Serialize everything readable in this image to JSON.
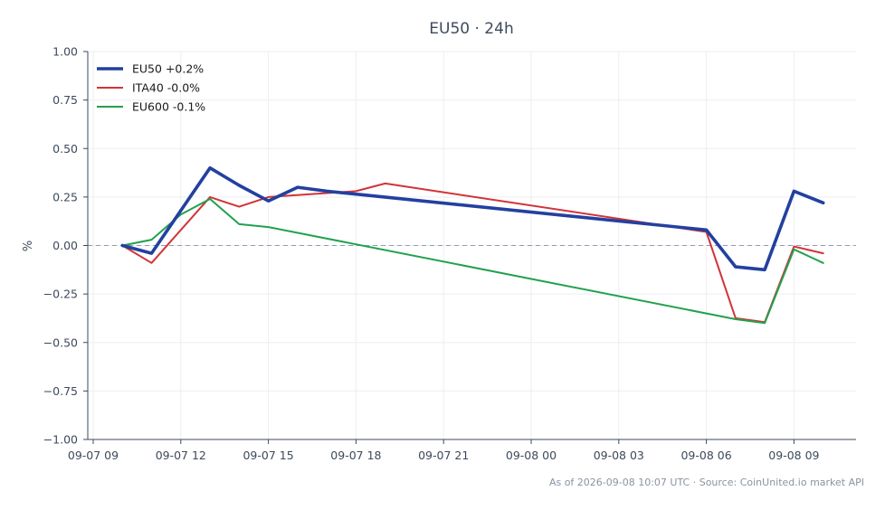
{
  "chart_data": {
    "type": "line",
    "title": "EU50 · 24h",
    "xlabel": "",
    "ylabel": "%",
    "ylim": [
      -1.0,
      1.0
    ],
    "xlim": [
      "2026-09-07 09:00",
      "2026-09-08 11:15"
    ],
    "yticks": [
      "1.00",
      "0.75",
      "0.50",
      "0.25",
      "0.00",
      "−0.25",
      "−0.50",
      "−0.75",
      "−1.00"
    ],
    "xticks": [
      "09-07 09",
      "09-07 12",
      "09-07 15",
      "09-07 18",
      "09-07 21",
      "09-08 00",
      "09-08 03",
      "09-08 06",
      "09-08 09"
    ],
    "grid": true,
    "zero_line": "dashed",
    "legend_position": "top-left",
    "series": [
      {
        "name": "EU50 +0.2%",
        "color": "#2340a0",
        "width": "thick",
        "x": [
          "2026-09-07 10:00",
          "2026-09-07 11:00",
          "2026-09-07 12:00",
          "2026-09-07 13:00",
          "2026-09-07 14:00",
          "2026-09-07 15:00",
          "2026-09-07 16:00",
          "2026-09-07 17:00",
          "2026-09-07 18:00",
          "2026-09-08 06:00",
          "2026-09-08 07:00",
          "2026-09-08 08:00",
          "2026-09-08 09:00",
          "2026-09-08 10:00"
        ],
        "y": [
          0.0,
          -0.04,
          0.18,
          0.4,
          0.31,
          0.23,
          0.3,
          0.28,
          0.265,
          0.08,
          -0.11,
          -0.125,
          0.28,
          0.22
        ]
      },
      {
        "name": "ITA40 -0.0%",
        "color": "#d13438",
        "width": "normal",
        "x": [
          "2026-09-07 10:00",
          "2026-09-07 11:00",
          "2026-09-07 13:00",
          "2026-09-07 14:00",
          "2026-09-07 15:00",
          "2026-09-07 18:00",
          "2026-09-07 19:00",
          "2026-09-08 06:00",
          "2026-09-08 07:00",
          "2026-09-08 08:00",
          "2026-09-08 09:00",
          "2026-09-08 10:00"
        ],
        "y": [
          0.0,
          -0.09,
          0.25,
          0.2,
          0.25,
          0.28,
          0.32,
          0.07,
          -0.375,
          -0.395,
          -0.005,
          -0.04
        ]
      },
      {
        "name": "EU600 -0.1%",
        "color": "#22a14d",
        "width": "normal",
        "x": [
          "2026-09-07 10:00",
          "2026-09-07 11:00",
          "2026-09-07 12:00",
          "2026-09-07 13:00",
          "2026-09-07 14:00",
          "2026-09-07 15:00",
          "2026-09-08 07:00",
          "2026-09-08 08:00",
          "2026-09-08 09:00",
          "2026-09-08 10:00"
        ],
        "y": [
          0.0,
          0.03,
          0.16,
          0.24,
          0.11,
          0.095,
          -0.38,
          -0.4,
          -0.02,
          -0.09
        ]
      }
    ]
  },
  "footer": "As of 2026-09-08 10:07 UTC · Source: CoinUnited.io market API"
}
